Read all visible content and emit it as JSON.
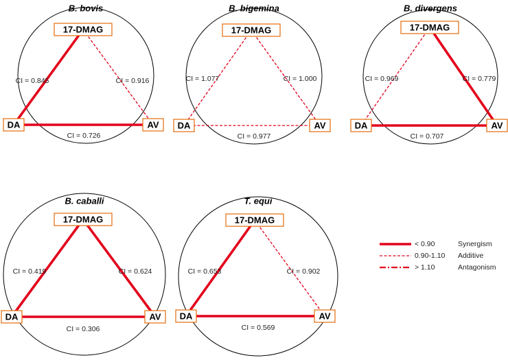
{
  "colors": {
    "line": "#e3001b",
    "box_border": "#e46c0a",
    "circle": "#000000"
  },
  "diagrams": [
    {
      "title": "B. bovis",
      "nodes": {
        "top": "17-DMAG",
        "left": "DA",
        "right": "AV"
      },
      "edges": {
        "left": {
          "label": "CI = 0.845",
          "style": "synergism"
        },
        "right": {
          "label": "CI = 0.916",
          "style": "additive"
        },
        "bottom": {
          "label": "CI = 0.726",
          "style": "synergism"
        }
      }
    },
    {
      "title": "B. bigemina",
      "nodes": {
        "top": "17-DMAG",
        "left": "DA",
        "right": "AV"
      },
      "edges": {
        "left": {
          "label": "CI = 1.077",
          "style": "additive"
        },
        "right": {
          "label": "CI = 1.000",
          "style": "additive"
        },
        "bottom": {
          "label": "CI = 0.977",
          "style": "additive"
        }
      }
    },
    {
      "title": "B. divergens",
      "nodes": {
        "top": "17-DMAG",
        "left": "DA",
        "right": "AV"
      },
      "edges": {
        "left": {
          "label": "CI = 0.969",
          "style": "additive"
        },
        "right": {
          "label": "CI = 0.779",
          "style": "synergism"
        },
        "bottom": {
          "label": "CI = 0.707",
          "style": "synergism"
        }
      }
    },
    {
      "title": "B. caballi",
      "nodes": {
        "top": "17-DMAG",
        "left": "DA",
        "right": "AV"
      },
      "edges": {
        "left": {
          "label": "CI = 0.419",
          "style": "synergism"
        },
        "right": {
          "label": "CI = 0.624",
          "style": "synergism"
        },
        "bottom": {
          "label": "CI = 0.306",
          "style": "synergism"
        }
      }
    },
    {
      "title": "T. equi",
      "nodes": {
        "top": "17-DMAG",
        "left": "DA",
        "right": "AV"
      },
      "edges": {
        "left": {
          "label": "CI = 0.653",
          "style": "synergism"
        },
        "right": {
          "label": "CI = 0.902",
          "style": "additive"
        },
        "bottom": {
          "label": "CI = 0.569",
          "style": "synergism"
        }
      }
    }
  ],
  "legend": [
    {
      "range": "< 0.90",
      "meaning": "Synergism",
      "style": "synergism"
    },
    {
      "range": "0.90-1.10",
      "meaning": "Additive",
      "style": "additive"
    },
    {
      "range": "> 1.10",
      "meaning": "Antagonism",
      "style": "antagonism"
    }
  ]
}
